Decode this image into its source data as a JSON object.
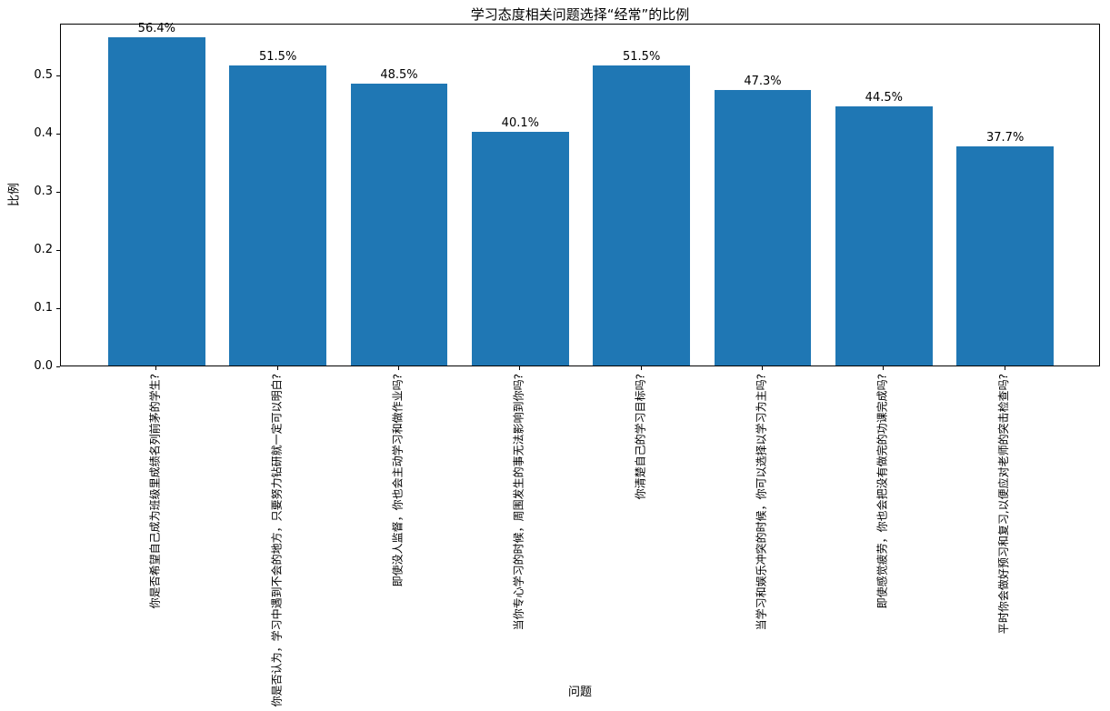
{
  "chart_data": {
    "type": "bar",
    "title": "学习态度相关问题选择“经常”的比例",
    "xlabel": "问题",
    "ylabel": "比例",
    "categories": [
      "你是否希望自己成为班级里成绩名列前茅的学生?",
      "你是否认为，学习中遇到不会的地方，只要努力钻研就一定可以明白?",
      "即使没人监督，你也会主动学习和做作业吗?",
      "当你专心学习的时候，周围发生的事无法影响到你吗?",
      "你清楚自己的学习目标吗?",
      "当学习和娱乐冲突的时候，你可以选择以学习为主吗?",
      "即使感觉疲劳，你也会把没有做完的功课完成吗?",
      "平时你会做好预习和复习,以便应对老师的突击检查吗?"
    ],
    "values_pct": [
      56.4,
      51.5,
      48.5,
      40.1,
      51.5,
      47.3,
      44.5,
      37.7
    ],
    "bar_label_format": "percent_one_decimal",
    "yticks": [
      "0.0",
      "0.1",
      "0.2",
      "0.3",
      "0.4",
      "0.5"
    ],
    "ylim": [
      0,
      0.589
    ],
    "bar_color": "#1f77b4",
    "grid": false,
    "legend": null
  }
}
